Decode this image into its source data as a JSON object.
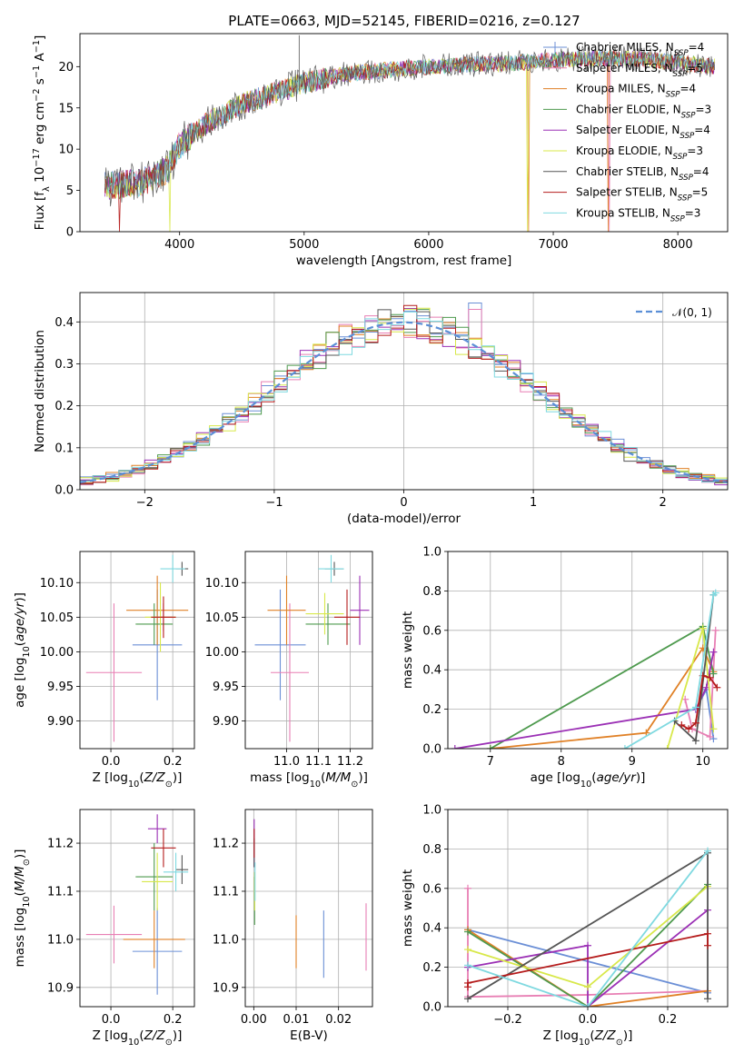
{
  "figure": {
    "title": "PLATE=0663, MJD=52145, FIBERID=0216, z=0.127"
  },
  "colors": {
    "Chabrier MILES": "#6b8fd6",
    "Salpeter MILES": "#e87fb4",
    "Kroupa MILES": "#e08127",
    "Chabrier ELODIE": "#4e9a4e",
    "Salpeter ELODIE": "#9b30b5",
    "Kroupa ELODIE": "#d8e84a",
    "Chabrier STELIB": "#555555",
    "Salpeter STELIB": "#b51b1b",
    "Kroupa STELIB": "#7fd9e0",
    "normal": "#5b8fd6"
  },
  "chart_data": [
    {
      "id": "spectrum",
      "type": "line",
      "title": "PLATE=0663, MJD=52145, FIBERID=0216, z=0.127",
      "xlabel": "wavelength [Angstrom, rest frame]",
      "ylabel": "Flux [f_λ 10^-17 erg cm^-2 s^-1 A^-1]",
      "xlim": [
        3200,
        8400
      ],
      "ylim": [
        0,
        24
      ],
      "xticks": [
        4000,
        5000,
        6000,
        7000,
        8000
      ],
      "yticks": [
        0,
        5,
        10,
        15,
        20
      ],
      "grid": false,
      "legend_position": "top-right",
      "legend": [
        {
          "text": "Chabrier MILES, N",
          "sub": "SSP",
          "tail": "=4",
          "color_key": "Chabrier MILES"
        },
        {
          "text": "Salpeter MILES, N",
          "sub": "SSP",
          "tail": "=5",
          "color_key": "Salpeter MILES"
        },
        {
          "text": "Kroupa MILES, N",
          "sub": "SSP",
          "tail": "=4",
          "color_key": "Kroupa MILES"
        },
        {
          "text": "Chabrier ELODIE, N",
          "sub": "SSP",
          "tail": "=3",
          "color_key": "Chabrier ELODIE"
        },
        {
          "text": "Salpeter ELODIE, N",
          "sub": "SSP",
          "tail": "=4",
          "color_key": "Salpeter ELODIE"
        },
        {
          "text": "Kroupa ELODIE, N",
          "sub": "SSP",
          "tail": "=3",
          "color_key": "Kroupa ELODIE"
        },
        {
          "text": "Chabrier STELIB, N",
          "sub": "SSP",
          "tail": "=4",
          "color_key": "Chabrier STELIB"
        },
        {
          "text": "Salpeter STELIB, N",
          "sub": "SSP",
          "tail": "=5",
          "color_key": "Salpeter STELIB"
        },
        {
          "text": "Kroupa STELIB, N",
          "sub": "SSP",
          "tail": "=3",
          "color_key": "Kroupa STELIB"
        }
      ],
      "data_model": {
        "wavelength_range": [
          3400,
          8300
        ],
        "continuum_x": [
          3400,
          3700,
          3900,
          4000,
          4200,
          4500,
          4800,
          5000,
          5300,
          5600,
          6000,
          6400,
          6800,
          7200,
          7600,
          8000,
          8300
        ],
        "continuum_y": [
          5.5,
          6.0,
          7.5,
          10.5,
          13.0,
          15.5,
          17.0,
          18.0,
          19.0,
          19.5,
          20.0,
          20.3,
          20.5,
          21.0,
          21.0,
          20.5,
          20.0
        ],
        "spike_top": {
          "x": 4960,
          "y": 23.8
        },
        "model_dropouts": [
          {
            "x": 3920,
            "series": "Kroupa ELODIE"
          },
          {
            "x": 6790,
            "series": "Kroupa ELODIE"
          },
          {
            "x": 6800,
            "series": "Kroupa MILES"
          },
          {
            "x": 7440,
            "series": "Kroupa MILES"
          },
          {
            "x": 7450,
            "series": "Salpeter MILES"
          },
          {
            "x": 3520,
            "series": "Salpeter STELIB"
          }
        ]
      }
    },
    {
      "id": "residuals",
      "type": "histogram",
      "xlabel": "(data-model)/error",
      "ylabel": "Normed distribution",
      "xlim": [
        -2.5,
        2.5
      ],
      "ylim": [
        0,
        0.47
      ],
      "xticks": [
        -2,
        -1,
        0,
        1,
        2
      ],
      "yticks": [
        0.0,
        0.1,
        0.2,
        0.3,
        0.4
      ],
      "grid": true,
      "legend_position": "top-right",
      "legend": [
        {
          "label": "𝒩(0, 1)",
          "color_key": "normal",
          "style": "dashed"
        }
      ],
      "bin_edges_range": [
        -2.5,
        2.5
      ],
      "n_bins": 50,
      "normal_curve": {
        "mean": 0,
        "sigma": 1
      },
      "series": [
        {
          "name": "Chabrier MILES",
          "bump_x": 0.55,
          "bump_y": 0.445
        },
        {
          "name": "Salpeter MILES",
          "bump_x": 0.55,
          "bump_y": 0.43
        },
        {
          "name": "Kroupa MILES"
        },
        {
          "name": "Chabrier ELODIE"
        },
        {
          "name": "Salpeter ELODIE"
        },
        {
          "name": "Kroupa ELODIE"
        },
        {
          "name": "Chabrier STELIB"
        },
        {
          "name": "Salpeter STELIB"
        },
        {
          "name": "Kroupa STELIB"
        }
      ]
    },
    {
      "id": "age_vs_Z",
      "type": "scatter",
      "xlabel": "Z [log10(Z/Z⊙)]",
      "ylabel": "age  [log10(age/yr)]",
      "xlim": [
        -0.1,
        0.27
      ],
      "ylim": [
        9.86,
        10.145
      ],
      "xticks": [
        0.0,
        0.2
      ],
      "xticklabels": [
        "0.0",
        "0.2"
      ],
      "yticks": [
        9.9,
        9.95,
        10.0,
        10.05,
        10.1
      ],
      "yticklabels": [
        "9.90",
        "9.95",
        "10.00",
        "10.05",
        "10.10"
      ],
      "grid": true,
      "points": [
        {
          "series": "Chabrier MILES",
          "x": 0.15,
          "xerr": 0.08,
          "y": 10.01,
          "yerr": 0.08
        },
        {
          "series": "Salpeter MILES",
          "x": 0.01,
          "xerr": 0.09,
          "y": 9.97,
          "yerr": 0.1
        },
        {
          "series": "Kroupa MILES",
          "x": 0.15,
          "xerr": 0.1,
          "y": 10.06,
          "yerr": 0.05
        },
        {
          "series": "Chabrier ELODIE",
          "x": 0.14,
          "xerr": 0.06,
          "y": 10.04,
          "yerr": 0.03
        },
        {
          "series": "Salpeter ELODIE",
          "x": 0.17,
          "xerr": 0.03,
          "y": 10.05,
          "yerr": 0.02
        },
        {
          "series": "Kroupa ELODIE",
          "x": 0.16,
          "xerr": 0.05,
          "y": 10.05,
          "yerr": 0.05
        },
        {
          "series": "Chabrier STELIB",
          "x": 0.23,
          "xerr": 0.02,
          "y": 10.12,
          "yerr": 0.01
        },
        {
          "series": "Salpeter STELIB",
          "x": 0.17,
          "xerr": 0.04,
          "y": 10.05,
          "yerr": 0.03
        },
        {
          "series": "Kroupa STELIB",
          "x": 0.2,
          "xerr": 0.04,
          "y": 10.12,
          "yerr": 0.02
        }
      ]
    },
    {
      "id": "age_vs_mass",
      "type": "scatter",
      "xlabel": "mass [log10(M/M⊙)]",
      "ylabel": "",
      "xlim": [
        10.87,
        11.27
      ],
      "ylim": [
        9.86,
        10.145
      ],
      "xticks": [
        11.0,
        11.1,
        11.2
      ],
      "xticklabels": [
        "11.0",
        "11.1",
        "11.2"
      ],
      "yticks": [
        9.9,
        9.95,
        10.0,
        10.05,
        10.1
      ],
      "yticklabels": [
        "9.90",
        "9.95",
        "10.00",
        "10.05",
        "10.10"
      ],
      "grid": true,
      "points": [
        {
          "series": "Chabrier MILES",
          "x": 10.98,
          "xerr": 0.08,
          "y": 10.01,
          "yerr": 0.08
        },
        {
          "series": "Salpeter MILES",
          "x": 11.01,
          "xerr": 0.06,
          "y": 9.97,
          "yerr": 0.1
        },
        {
          "series": "Kroupa MILES",
          "x": 11.0,
          "xerr": 0.06,
          "y": 10.06,
          "yerr": 0.05
        },
        {
          "series": "Chabrier ELODIE",
          "x": 11.13,
          "xerr": 0.07,
          "y": 10.04,
          "yerr": 0.03
        },
        {
          "series": "Salpeter ELODIE",
          "x": 11.23,
          "xerr": 0.03,
          "y": 10.06,
          "yerr": 0.05
        },
        {
          "series": "Kroupa ELODIE",
          "x": 11.12,
          "xerr": 0.06,
          "y": 10.055,
          "yerr": 0.03
        },
        {
          "series": "Chabrier STELIB",
          "x": 11.15,
          "xerr": 0.03,
          "y": 10.12,
          "yerr": 0.01
        },
        {
          "series": "Salpeter STELIB",
          "x": 11.19,
          "xerr": 0.04,
          "y": 10.05,
          "yerr": 0.04
        },
        {
          "series": "Kroupa STELIB",
          "x": 11.14,
          "xerr": 0.04,
          "y": 10.12,
          "yerr": 0.02
        }
      ]
    },
    {
      "id": "mass_weight_vs_age",
      "type": "line",
      "xlabel": "age  [log10(age/yr)]",
      "ylabel": "mass weight",
      "xlim": [
        6.4,
        10.35
      ],
      "ylim": [
        0,
        1
      ],
      "xticks": [
        7,
        8,
        9,
        10
      ],
      "xticklabels": [
        "7",
        "8",
        "9",
        "10"
      ],
      "yticks": [
        0.0,
        0.2,
        0.4,
        0.6,
        0.8,
        1.0
      ],
      "yticklabels": [
        "0.0",
        "0.2",
        "0.4",
        "0.6",
        "0.8",
        "1.0"
      ],
      "grid": true,
      "series": [
        {
          "name": "Chabrier MILES",
          "x": [
            9.9,
            10.05,
            10.15
          ],
          "y": [
            0.2,
            0.3,
            0.05
          ]
        },
        {
          "name": "Salpeter MILES",
          "x": [
            9.75,
            9.85,
            10.1,
            10.18
          ],
          "y": [
            0.25,
            0.1,
            0.06,
            0.6
          ]
        },
        {
          "name": "Kroupa MILES",
          "x": [
            7.0,
            9.2,
            10.0,
            10.15
          ],
          "y": [
            0.0,
            0.08,
            0.51,
            0.39
          ]
        },
        {
          "name": "Chabrier ELODIE",
          "x": [
            7.0,
            10.0,
            10.15
          ],
          "y": [
            0.0,
            0.62,
            0.38
          ]
        },
        {
          "name": "Salpeter ELODIE",
          "x": [
            6.5,
            9.9,
            10.05,
            10.15
          ],
          "y": [
            0.0,
            0.2,
            0.31,
            0.49
          ]
        },
        {
          "name": "Kroupa ELODIE",
          "x": [
            9.5,
            10.0,
            10.15
          ],
          "y": [
            0.0,
            0.61,
            0.1
          ]
        },
        {
          "name": "Chabrier STELIB",
          "x": [
            9.6,
            9.9,
            10.15
          ],
          "y": [
            0.14,
            0.04,
            0.78
          ]
        },
        {
          "name": "Salpeter STELIB",
          "x": [
            9.7,
            9.8,
            9.9,
            10.0,
            10.1,
            10.2
          ],
          "y": [
            0.12,
            0.1,
            0.13,
            0.37,
            0.36,
            0.31
          ]
        },
        {
          "name": "Kroupa STELIB",
          "x": [
            8.9,
            9.9,
            10.15,
            10.18
          ],
          "y": [
            0.0,
            0.21,
            0.78,
            0.79
          ]
        }
      ]
    },
    {
      "id": "mass_vs_Z",
      "type": "scatter",
      "xlabel": "Z [log10(Z/Z⊙)]",
      "ylabel": "mass [log10(M/M⊙)]",
      "xlim": [
        -0.1,
        0.27
      ],
      "ylim": [
        10.86,
        11.27
      ],
      "xticks": [
        0.0,
        0.2
      ],
      "xticklabels": [
        "0.0",
        "0.2"
      ],
      "yticks": [
        10.9,
        11.0,
        11.1,
        11.2
      ],
      "yticklabels": [
        "10.9",
        "11.0",
        "11.1",
        "11.2"
      ],
      "grid": true,
      "points": [
        {
          "series": "Chabrier MILES",
          "x": 0.15,
          "xerr": 0.08,
          "y": 10.975,
          "yerr": 0.09
        },
        {
          "series": "Salpeter MILES",
          "x": 0.01,
          "xerr": 0.09,
          "y": 11.01,
          "yerr": 0.06
        },
        {
          "series": "Kroupa MILES",
          "x": 0.14,
          "xerr": 0.1,
          "y": 11.0,
          "yerr": 0.06
        },
        {
          "series": "Chabrier ELODIE",
          "x": 0.14,
          "xerr": 0.06,
          "y": 11.13,
          "yerr": 0.07
        },
        {
          "series": "Salpeter ELODIE",
          "x": 0.15,
          "xerr": 0.03,
          "y": 11.23,
          "yerr": 0.03
        },
        {
          "series": "Kroupa ELODIE",
          "x": 0.15,
          "xerr": 0.05,
          "y": 11.12,
          "yerr": 0.06
        },
        {
          "series": "Chabrier STELIB",
          "x": 0.23,
          "xerr": 0.02,
          "y": 11.145,
          "yerr": 0.03
        },
        {
          "series": "Salpeter STELIB",
          "x": 0.17,
          "xerr": 0.04,
          "y": 11.19,
          "yerr": 0.04
        },
        {
          "series": "Kroupa STELIB",
          "x": 0.21,
          "xerr": 0.04,
          "y": 11.14,
          "yerr": 0.04
        }
      ]
    },
    {
      "id": "mass_vs_ebv",
      "type": "scatter",
      "xlabel": "E(B-V)",
      "ylabel": "",
      "xlim": [
        -0.002,
        0.028
      ],
      "ylim": [
        10.86,
        11.27
      ],
      "xticks": [
        0.0,
        0.01,
        0.02
      ],
      "xticklabels": [
        "0.00",
        "0.01",
        "0.02"
      ],
      "yticks": [
        10.9,
        11.0,
        11.1,
        11.2
      ],
      "yticklabels": [
        "10.9",
        "11.0",
        "11.1",
        "11.2"
      ],
      "grid": true,
      "points": [
        {
          "series": "Chabrier MILES",
          "x": 0.0165,
          "xerr": 0,
          "y": 10.99,
          "yerr": 0.07
        },
        {
          "series": "Salpeter MILES",
          "x": 0.0265,
          "xerr": 0,
          "y": 11.005,
          "yerr": 0.07
        },
        {
          "series": "Kroupa MILES",
          "x": 0.01,
          "xerr": 0,
          "y": 10.995,
          "yerr": 0.055
        },
        {
          "series": "Chabrier ELODIE",
          "x": 0.0002,
          "xerr": 0,
          "y": 11.08,
          "yerr": 0.05
        },
        {
          "series": "Salpeter ELODIE",
          "x": 0.0001,
          "xerr": 0,
          "y": 11.2,
          "yerr": 0.05
        },
        {
          "series": "Kroupa ELODIE",
          "x": 0.0002,
          "xerr": 0,
          "y": 11.1,
          "yerr": 0.04
        },
        {
          "series": "Chabrier STELIB",
          "x": 0.0001,
          "xerr": 0,
          "y": 11.18,
          "yerr": 0.03
        },
        {
          "series": "Salpeter STELIB",
          "x": 0.0001,
          "xerr": 0,
          "y": 11.2,
          "yerr": 0.03
        },
        {
          "series": "Kroupa STELIB",
          "x": 0.0003,
          "xerr": 0,
          "y": 11.12,
          "yerr": 0.04
        }
      ]
    },
    {
      "id": "mass_weight_vs_Z",
      "type": "line",
      "xlabel": "Z [log10(Z/Z⊙)]",
      "ylabel": "mass weight",
      "xlim": [
        -0.35,
        0.35
      ],
      "ylim": [
        0,
        1
      ],
      "xticks": [
        -0.2,
        0.0,
        0.2
      ],
      "xticklabels": [
        "−0.2",
        "0.0",
        "0.2"
      ],
      "yticks": [
        0.0,
        0.2,
        0.4,
        0.6,
        0.8,
        1.0
      ],
      "yticklabels": [
        "0.0",
        "0.2",
        "0.4",
        "0.6",
        "0.8",
        "1.0"
      ],
      "grid": true,
      "series": [
        {
          "name": "Chabrier MILES",
          "x": [
            -0.3,
            0.3
          ],
          "y": [
            0.39,
            0.07
          ]
        },
        {
          "name": "Salpeter MILES",
          "x": [
            -0.3,
            -0.3,
            0.0,
            0.3
          ],
          "y": [
            0.6,
            0.05,
            0.06,
            0.08
          ]
        },
        {
          "name": "Kroupa MILES",
          "x": [
            -0.3,
            0.0,
            0.3
          ],
          "y": [
            0.39,
            0.0,
            0.08
          ]
        },
        {
          "name": "Chabrier ELODIE",
          "x": [
            -0.3,
            0.0,
            0.3
          ],
          "y": [
            0.38,
            0.0,
            0.62
          ]
        },
        {
          "name": "Salpeter ELODIE",
          "x": [
            -0.3,
            0.0,
            0.0,
            0.3
          ],
          "y": [
            0.2,
            0.31,
            0.0,
            0.49
          ]
        },
        {
          "name": "Kroupa ELODIE",
          "x": [
            -0.3,
            0.0,
            0.3
          ],
          "y": [
            0.29,
            0.1,
            0.61
          ]
        },
        {
          "name": "Chabrier STELIB",
          "x": [
            -0.3,
            0.3,
            0.3
          ],
          "y": [
            0.04,
            0.78,
            0.04
          ]
        },
        {
          "name": "Salpeter STELIB",
          "x": [
            -0.3,
            -0.3,
            0.3,
            0.3
          ],
          "y": [
            0.1,
            0.12,
            0.37,
            0.31
          ]
        },
        {
          "name": "Kroupa STELIB",
          "x": [
            -0.3,
            0.0,
            0.3
          ],
          "y": [
            0.21,
            0.0,
            0.79
          ]
        }
      ]
    }
  ]
}
